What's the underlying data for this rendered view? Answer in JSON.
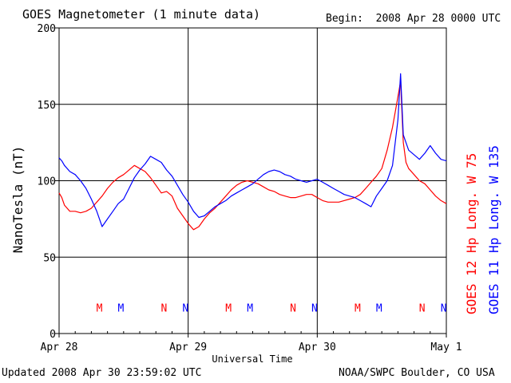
{
  "header": {
    "title": "GOES Magnetometer (1 minute data)",
    "begin": "Begin:  2008 Apr 28 0000 UTC"
  },
  "footer": {
    "updated": "Updated 2008 Apr 30 23:59:02 UTC",
    "source": "NOAA/SWPC Boulder, CO USA"
  },
  "colors": {
    "goes12": "#ff0000",
    "goes11": "#0000ff",
    "axis": "#000000"
  },
  "chart_data": {
    "type": "line",
    "xlabel": "Universal Time",
    "ylabel": "NanoTesla (nT)",
    "ylim": [
      0,
      200
    ],
    "xlim_hours": [
      0,
      72
    ],
    "y_ticks": [
      0,
      50,
      100,
      150,
      200
    ],
    "x_ticks": [
      {
        "hour": 0,
        "label": "Apr 28"
      },
      {
        "hour": 24,
        "label": "Apr 29"
      },
      {
        "hour": 48,
        "label": "Apr 30"
      },
      {
        "hour": 72,
        "label": "May 1"
      }
    ],
    "grid": true,
    "series": [
      {
        "name": "GOES 12 Hp  Long. W 75",
        "color": "#ff0000",
        "points": [
          [
            0,
            92
          ],
          [
            0.5,
            89
          ],
          [
            1,
            84
          ],
          [
            1.5,
            82
          ],
          [
            2,
            80
          ],
          [
            3,
            80
          ],
          [
            4,
            79
          ],
          [
            5,
            80
          ],
          [
            6,
            82
          ],
          [
            7,
            86
          ],
          [
            8,
            90
          ],
          [
            9,
            95
          ],
          [
            10,
            99
          ],
          [
            11,
            102
          ],
          [
            12,
            104
          ],
          [
            13,
            107
          ],
          [
            14,
            110
          ],
          [
            15,
            108
          ],
          [
            16,
            106
          ],
          [
            17,
            102
          ],
          [
            18,
            97
          ],
          [
            19,
            92
          ],
          [
            20,
            93
          ],
          [
            21,
            90
          ],
          [
            22,
            82
          ],
          [
            23,
            77
          ],
          [
            24,
            72
          ],
          [
            25,
            68
          ],
          [
            26,
            70
          ],
          [
            27,
            75
          ],
          [
            28,
            79
          ],
          [
            29,
            82
          ],
          [
            30,
            86
          ],
          [
            31,
            90
          ],
          [
            32,
            94
          ],
          [
            33,
            97
          ],
          [
            34,
            99
          ],
          [
            35,
            100
          ],
          [
            36,
            99
          ],
          [
            37,
            98
          ],
          [
            38,
            96
          ],
          [
            39,
            94
          ],
          [
            40,
            93
          ],
          [
            41,
            91
          ],
          [
            42,
            90
          ],
          [
            43,
            89
          ],
          [
            44,
            89
          ],
          [
            45,
            90
          ],
          [
            46,
            91
          ],
          [
            47,
            91
          ],
          [
            48,
            89
          ],
          [
            49,
            87
          ],
          [
            50,
            86
          ],
          [
            51,
            86
          ],
          [
            52,
            86
          ],
          [
            53,
            87
          ],
          [
            54,
            88
          ],
          [
            55,
            89
          ],
          [
            56,
            91
          ],
          [
            57,
            95
          ],
          [
            58,
            99
          ],
          [
            59,
            103
          ],
          [
            60,
            108
          ],
          [
            61,
            120
          ],
          [
            62,
            135
          ],
          [
            63,
            155
          ],
          [
            63.5,
            165
          ],
          [
            64,
            125
          ],
          [
            64.5,
            112
          ],
          [
            65,
            108
          ],
          [
            66,
            104
          ],
          [
            67,
            100
          ],
          [
            68,
            98
          ],
          [
            69,
            94
          ],
          [
            70,
            90
          ],
          [
            71,
            87
          ],
          [
            72,
            85
          ]
        ]
      },
      {
        "name": "GOES 11 Hp  Long. W 135",
        "color": "#0000ff",
        "points": [
          [
            0,
            115
          ],
          [
            0.5,
            113
          ],
          [
            1,
            110
          ],
          [
            2,
            106
          ],
          [
            3,
            104
          ],
          [
            4,
            100
          ],
          [
            5,
            95
          ],
          [
            6,
            88
          ],
          [
            7,
            80
          ],
          [
            8,
            70
          ],
          [
            9,
            75
          ],
          [
            10,
            80
          ],
          [
            11,
            85
          ],
          [
            12,
            88
          ],
          [
            13,
            95
          ],
          [
            14,
            102
          ],
          [
            15,
            107
          ],
          [
            16,
            111
          ],
          [
            17,
            116
          ],
          [
            18,
            114
          ],
          [
            19,
            112
          ],
          [
            20,
            107
          ],
          [
            21,
            103
          ],
          [
            22,
            97
          ],
          [
            23,
            91
          ],
          [
            24,
            86
          ],
          [
            25,
            80
          ],
          [
            26,
            76
          ],
          [
            27,
            77
          ],
          [
            28,
            80
          ],
          [
            29,
            83
          ],
          [
            30,
            85
          ],
          [
            31,
            87
          ],
          [
            32,
            90
          ],
          [
            33,
            92
          ],
          [
            34,
            94
          ],
          [
            35,
            96
          ],
          [
            36,
            98
          ],
          [
            37,
            101
          ],
          [
            38,
            104
          ],
          [
            39,
            106
          ],
          [
            40,
            107
          ],
          [
            41,
            106
          ],
          [
            42,
            104
          ],
          [
            43,
            103
          ],
          [
            44,
            101
          ],
          [
            45,
            100
          ],
          [
            46,
            99
          ],
          [
            47,
            100
          ],
          [
            48,
            101
          ],
          [
            49,
            99
          ],
          [
            50,
            97
          ],
          [
            51,
            95
          ],
          [
            52,
            93
          ],
          [
            53,
            91
          ],
          [
            54,
            90
          ],
          [
            55,
            89
          ],
          [
            56,
            87
          ],
          [
            57,
            85
          ],
          [
            58,
            83
          ],
          [
            59,
            90
          ],
          [
            60,
            95
          ],
          [
            61,
            100
          ],
          [
            62,
            110
          ],
          [
            63,
            140
          ],
          [
            63.5,
            170
          ],
          [
            64,
            130
          ],
          [
            65,
            120
          ],
          [
            66,
            117
          ],
          [
            67,
            114
          ],
          [
            68,
            118
          ],
          [
            69,
            123
          ],
          [
            70,
            118
          ],
          [
            71,
            114
          ],
          [
            72,
            113
          ]
        ]
      }
    ],
    "markers": [
      {
        "hour": 7.5,
        "label": "M",
        "color": "#ff0000"
      },
      {
        "hour": 11.5,
        "label": "M",
        "color": "#0000ff"
      },
      {
        "hour": 19.5,
        "label": "N",
        "color": "#ff0000"
      },
      {
        "hour": 23.5,
        "label": "N",
        "color": "#0000ff"
      },
      {
        "hour": 31.5,
        "label": "M",
        "color": "#ff0000"
      },
      {
        "hour": 35.5,
        "label": "M",
        "color": "#0000ff"
      },
      {
        "hour": 43.5,
        "label": "N",
        "color": "#ff0000"
      },
      {
        "hour": 47.5,
        "label": "N",
        "color": "#0000ff"
      },
      {
        "hour": 55.5,
        "label": "M",
        "color": "#ff0000"
      },
      {
        "hour": 59.5,
        "label": "M",
        "color": "#0000ff"
      },
      {
        "hour": 67.5,
        "label": "N",
        "color": "#ff0000"
      },
      {
        "hour": 71.5,
        "label": "N",
        "color": "#0000ff"
      }
    ],
    "marker_level_nT": 17
  }
}
